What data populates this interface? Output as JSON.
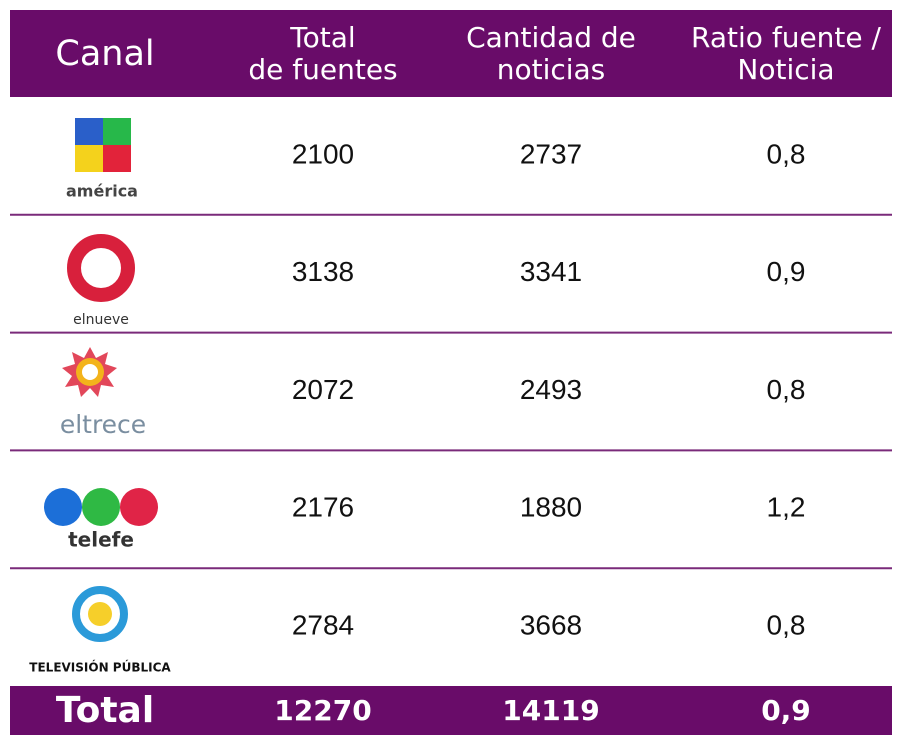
{
  "table": {
    "header": [
      [
        "Canal"
      ],
      [
        "Total",
        "de fuentes"
      ],
      [
        "Cantidad de",
        "noticias"
      ],
      [
        "Ratio fuente /",
        "Noticia"
      ]
    ],
    "rows": [
      [
        "américa",
        "2100",
        "2737",
        "0,8"
      ],
      [
        "elnueve",
        "3138",
        "3341",
        "0,9"
      ],
      [
        "eltrece",
        "2072",
        "2493",
        "0,8"
      ],
      [
        "telefe",
        "2176",
        "1880",
        "1,2"
      ],
      [
        "TELEVISIÓN PÚBLICA",
        "2784",
        "3668",
        "0,8"
      ]
    ],
    "total": [
      "Total",
      "12270",
      "14119",
      "0,9"
    ]
  }
}
